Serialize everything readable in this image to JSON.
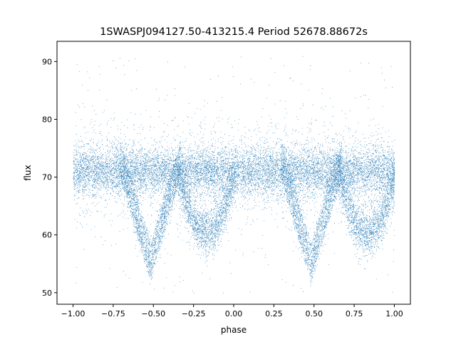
{
  "chart_data": {
    "type": "scatter",
    "title": "1SWASPJ094127.50-413215.4 Period 52678.88672s",
    "xlabel": "phase",
    "ylabel": "flux",
    "xlim": [
      -1.1,
      1.1
    ],
    "ylim": [
      48,
      93.5
    ],
    "xticks": [
      -1.0,
      -0.75,
      -0.5,
      -0.25,
      0.0,
      0.25,
      0.5,
      0.75,
      1.0
    ],
    "xtick_labels": [
      "−1.00",
      "−0.75",
      "−0.50",
      "−0.25",
      "0.00",
      "0.25",
      "0.50",
      "0.75",
      "1.00"
    ],
    "yticks": [
      50,
      60,
      70,
      80,
      90
    ],
    "ytick_labels": [
      "50",
      "60",
      "70",
      "80",
      "90"
    ],
    "grid": false,
    "legend": "none",
    "marker_color": "#1f77b4",
    "series": [
      {
        "x_range": [
          -1.0,
          1.0
        ],
        "baseline_flux": 71,
        "core_band": [
          67,
          75
        ],
        "dips": [
          {
            "phase": -0.52,
            "min_flux": 53,
            "shape": "V"
          },
          {
            "phase": -0.17,
            "min_flux": 59,
            "shape": "U"
          },
          {
            "phase": 0.48,
            "min_flux": 53,
            "shape": "V"
          },
          {
            "phase": 0.83,
            "min_flux": 59,
            "shape": "U"
          }
        ],
        "scatter_max_flux": 91,
        "sample_points": [
          [
            -1.0,
            70.8
          ],
          [
            -0.9,
            71.2
          ],
          [
            -0.8,
            72.1
          ],
          [
            -0.7,
            70.5
          ],
          [
            -0.6,
            68.0
          ],
          [
            -0.55,
            55.5
          ],
          [
            -0.5,
            54.0
          ],
          [
            -0.45,
            56.5
          ],
          [
            -0.35,
            65.0
          ],
          [
            -0.25,
            68.0
          ],
          [
            -0.17,
            60.5
          ],
          [
            -0.1,
            62.0
          ],
          [
            0.0,
            71.0
          ],
          [
            0.1,
            71.5
          ],
          [
            0.2,
            72.0
          ],
          [
            0.3,
            71.0
          ],
          [
            0.4,
            68.5
          ],
          [
            0.45,
            55.0
          ],
          [
            0.5,
            54.0
          ],
          [
            0.55,
            56.0
          ],
          [
            0.65,
            65.5
          ],
          [
            0.75,
            68.5
          ],
          [
            0.83,
            60.0
          ],
          [
            0.9,
            63.0
          ],
          [
            1.0,
            70.5
          ]
        ]
      }
    ]
  }
}
